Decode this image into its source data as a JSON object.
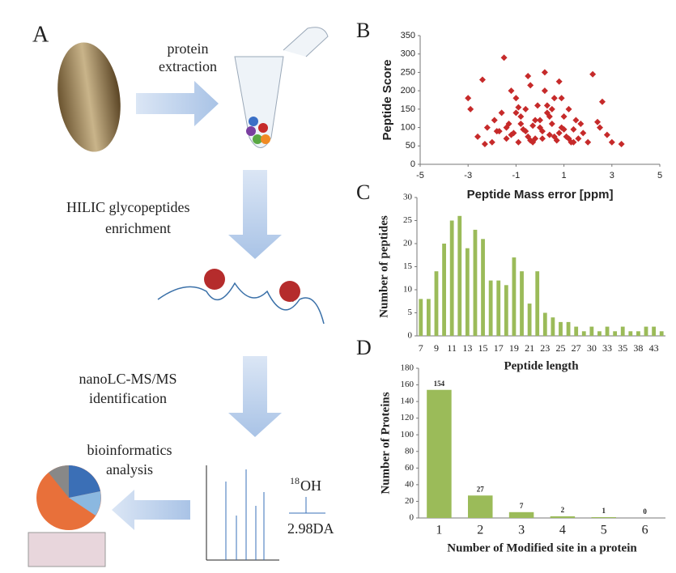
{
  "diagram": {
    "panel": "A",
    "step1": [
      "protein",
      "extraction"
    ],
    "step2": [
      "HILIC glycopeptides",
      "enrichment"
    ],
    "step3": [
      "nanoLC-MS/MS",
      "identification"
    ],
    "step4": [
      "bioinformatics",
      "analysis"
    ],
    "isotope": "18",
    "group": "OH",
    "shift": "2.98DA"
  },
  "chart_data": [
    {
      "type": "scatter",
      "panel": "B",
      "x_label": "Peptide Mass error [ppm]",
      "y_label": "Peptide Score",
      "color": "#c62a2a",
      "x": [
        -3,
        -2.9,
        -2.6,
        -2.4,
        -2.2,
        -2,
        -1.9,
        -1.8,
        -1.6,
        -1.5,
        -1.4,
        -1.3,
        -1.2,
        -1.1,
        -1,
        -0.9,
        -0.8,
        -0.7,
        -0.6,
        -0.5,
        -0.4,
        -0.3,
        -0.2,
        -0.1,
        0,
        0.1,
        0.2,
        0.3,
        0.4,
        0.5,
        0.6,
        0.7,
        0.8,
        0.9,
        1,
        1.1,
        1.2,
        1.3,
        1.4,
        1.5,
        1.6,
        1.8,
        2,
        2.2,
        2.4,
        2.6,
        2.8,
        3,
        3.4,
        -1.4,
        -1,
        -0.6,
        -0.2,
        0.2,
        0.6,
        1,
        1.4,
        -1.2,
        -0.8,
        -0.4,
        0,
        0.4,
        0.8,
        1.2,
        -0.5,
        0.3,
        -2.3,
        2.5,
        -0.3,
        0.5,
        -1.7,
        1.7,
        0.1,
        -0.9,
        0.9
      ],
      "y": [
        180,
        150,
        75,
        230,
        100,
        60,
        120,
        90,
        140,
        290,
        70,
        110,
        200,
        85,
        180,
        60,
        130,
        95,
        150,
        75,
        215,
        105,
        70,
        160,
        120,
        90,
        250,
        140,
        80,
        110,
        180,
        65,
        225,
        100,
        130,
        75,
        150,
        60,
        95,
        120,
        70,
        85,
        60,
        245,
        115,
        170,
        80,
        60,
        55,
        100,
        140,
        90,
        120,
        200,
        75,
        95,
        60,
        80,
        110,
        65,
        100,
        130,
        85,
        70,
        240,
        160,
        55,
        100,
        60,
        150,
        90,
        110,
        70,
        155,
        180
      ],
      "xlim": [
        -5,
        5
      ],
      "xticks": [
        -5,
        -3,
        -1,
        1,
        3,
        5
      ],
      "ylim": [
        0,
        350
      ],
      "yticks": [
        0,
        50,
        100,
        150,
        200,
        250,
        300,
        350
      ]
    },
    {
      "type": "bar",
      "panel": "C",
      "x_label": "Peptide length",
      "y_label": "Number of peptides",
      "color": "#9bbb59",
      "categories": [
        "7",
        null,
        "9",
        null,
        "11",
        null,
        "13",
        null,
        "15",
        null,
        "17",
        null,
        "19",
        null,
        "21",
        null,
        "23",
        null,
        "25",
        null,
        "27",
        null,
        "30",
        null,
        "33",
        null,
        "35",
        null,
        "38",
        null,
        "43",
        null
      ],
      "values": [
        8,
        8,
        14,
        20,
        25,
        26,
        19,
        23,
        21,
        12,
        12,
        11,
        17,
        14,
        7,
        14,
        5,
        4,
        3,
        3,
        2,
        1,
        2,
        1,
        2,
        1,
        2,
        1,
        1,
        2,
        2,
        1
      ],
      "ylim": [
        0,
        30
      ],
      "yticks": [
        0,
        5,
        10,
        15,
        20,
        25,
        30
      ]
    },
    {
      "type": "bar",
      "panel": "D",
      "x_label": "Number of Modified site in a protein",
      "y_label": "Number of Proteins",
      "color": "#9bbb59",
      "data_labels": true,
      "categories": [
        "1",
        "2",
        "3",
        "4",
        "5",
        "6"
      ],
      "values": [
        154,
        27,
        7,
        2,
        1,
        0
      ],
      "ylim": [
        0,
        180
      ],
      "yticks": [
        0,
        20,
        40,
        60,
        80,
        100,
        120,
        140,
        160,
        180
      ]
    }
  ]
}
